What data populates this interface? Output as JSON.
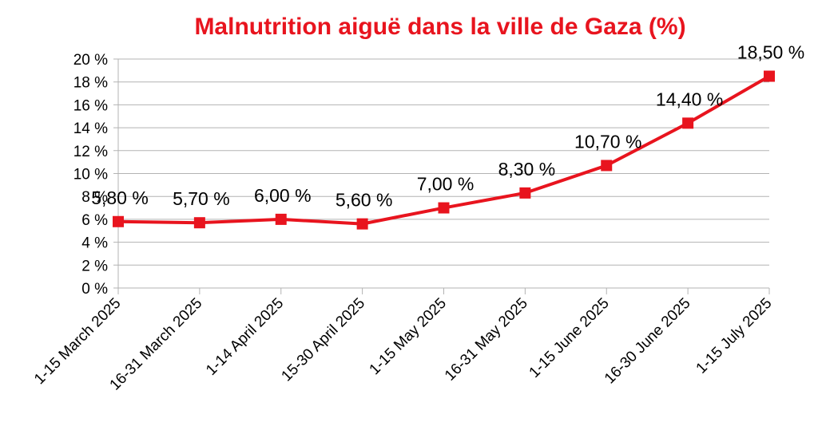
{
  "chart_data": {
    "type": "line",
    "title": "Malnutrition aiguë dans la ville de Gaza (%)",
    "categories": [
      "1-15 March 2025",
      "16-31 March 2025",
      "1-14 April 2025",
      "15-30 April 2025",
      "1-15 May 2025",
      "16-31 May 2025",
      "1-15 June 2025",
      "16-30 June 2025",
      "1-15 July 2025"
    ],
    "series": [
      {
        "values": [
          5.8,
          5.7,
          6.0,
          5.6,
          7.0,
          8.3,
          10.7,
          14.4,
          18.5
        ],
        "data_labels": [
          "5,80 %",
          "5,70 %",
          "6,00 %",
          "5,60 %",
          "7,00 %",
          "8,30 %",
          "10,70 %",
          "14,40 %",
          "18,50 %"
        ],
        "color": "#e8141e"
      }
    ],
    "y_ticks": [
      "0 %",
      "2 %",
      "4 %",
      "6 %",
      "8 %",
      "10 %",
      "12 %",
      "14 %",
      "16 %",
      "18 %",
      "20 %"
    ],
    "ylim": [
      0,
      20
    ],
    "grid": true,
    "title_color": "#e8141e",
    "grid_color": "#b3b3b3"
  }
}
